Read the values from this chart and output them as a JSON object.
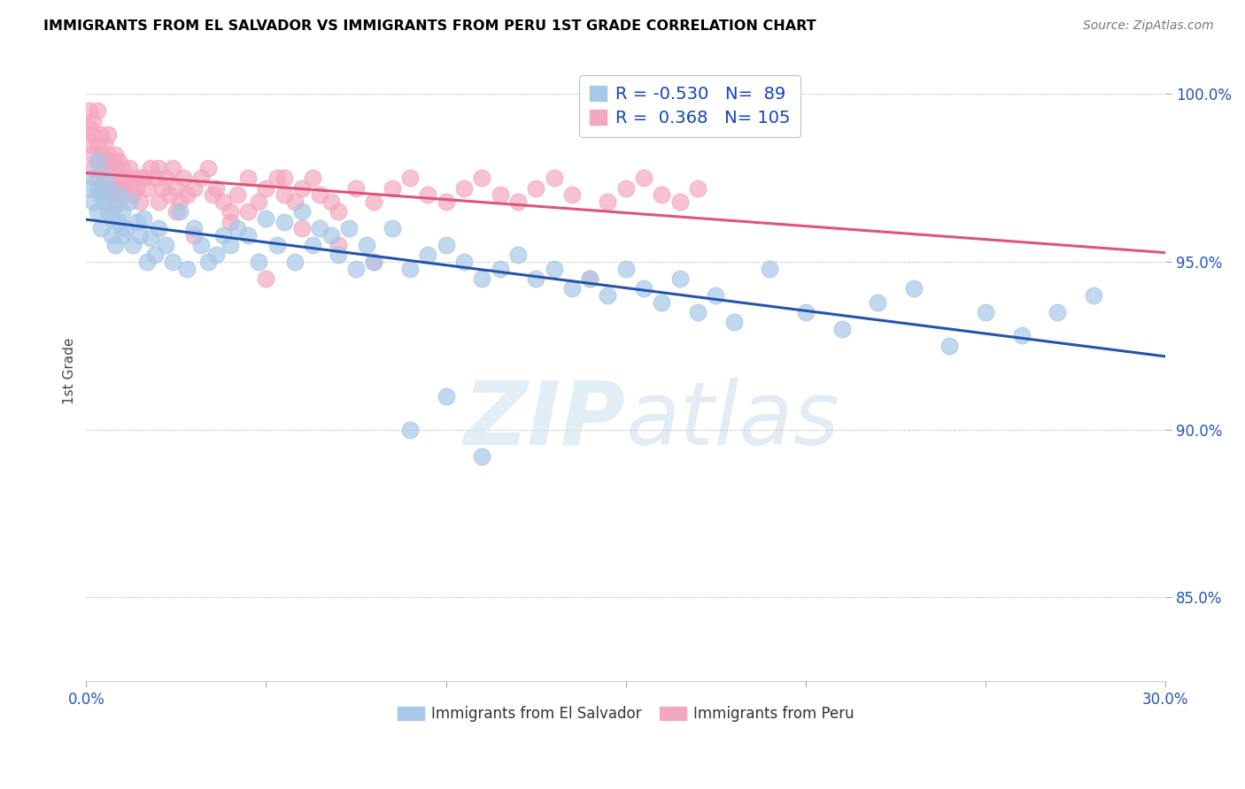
{
  "title": "IMMIGRANTS FROM EL SALVADOR VS IMMIGRANTS FROM PERU 1ST GRADE CORRELATION CHART",
  "source": "Source: ZipAtlas.com",
  "ylabel": "1st Grade",
  "ytick_labels": [
    "85.0%",
    "90.0%",
    "95.0%",
    "100.0%"
  ],
  "ytick_values": [
    0.85,
    0.9,
    0.95,
    1.0
  ],
  "xlim": [
    0.0,
    0.3
  ],
  "ylim": [
    0.825,
    1.01
  ],
  "legend_blue_R": "-0.530",
  "legend_blue_N": "89",
  "legend_pink_R": "0.368",
  "legend_pink_N": "105",
  "legend_blue_label": "Immigrants from El Salvador",
  "legend_pink_label": "Immigrants from Peru",
  "blue_color": "#a8c8e8",
  "pink_color": "#f4a8c0",
  "blue_line_color": "#2255aa",
  "pink_line_color": "#dd5577",
  "watermark_zip": "ZIP",
  "watermark_atlas": "atlas",
  "blue_scatter_x": [
    0.001,
    0.002,
    0.002,
    0.003,
    0.003,
    0.003,
    0.004,
    0.004,
    0.005,
    0.005,
    0.006,
    0.006,
    0.007,
    0.007,
    0.008,
    0.008,
    0.009,
    0.009,
    0.01,
    0.01,
    0.011,
    0.012,
    0.013,
    0.014,
    0.015,
    0.016,
    0.017,
    0.018,
    0.019,
    0.02,
    0.022,
    0.024,
    0.026,
    0.028,
    0.03,
    0.032,
    0.034,
    0.036,
    0.038,
    0.04,
    0.042,
    0.045,
    0.048,
    0.05,
    0.053,
    0.055,
    0.058,
    0.06,
    0.063,
    0.065,
    0.068,
    0.07,
    0.073,
    0.075,
    0.078,
    0.08,
    0.085,
    0.09,
    0.095,
    0.1,
    0.105,
    0.11,
    0.115,
    0.12,
    0.125,
    0.13,
    0.135,
    0.14,
    0.145,
    0.15,
    0.155,
    0.16,
    0.165,
    0.17,
    0.175,
    0.18,
    0.19,
    0.2,
    0.21,
    0.22,
    0.23,
    0.24,
    0.25,
    0.26,
    0.27,
    0.28,
    0.09,
    0.1,
    0.11
  ],
  "blue_scatter_y": [
    0.972,
    0.975,
    0.968,
    0.971,
    0.965,
    0.98,
    0.97,
    0.96,
    0.968,
    0.975,
    0.965,
    0.972,
    0.963,
    0.958,
    0.967,
    0.955,
    0.962,
    0.97,
    0.958,
    0.965,
    0.96,
    0.968,
    0.955,
    0.962,
    0.958,
    0.963,
    0.95,
    0.957,
    0.952,
    0.96,
    0.955,
    0.95,
    0.965,
    0.948,
    0.96,
    0.955,
    0.95,
    0.952,
    0.958,
    0.955,
    0.96,
    0.958,
    0.95,
    0.963,
    0.955,
    0.962,
    0.95,
    0.965,
    0.955,
    0.96,
    0.958,
    0.952,
    0.96,
    0.948,
    0.955,
    0.95,
    0.96,
    0.948,
    0.952,
    0.955,
    0.95,
    0.945,
    0.948,
    0.952,
    0.945,
    0.948,
    0.942,
    0.945,
    0.94,
    0.948,
    0.942,
    0.938,
    0.945,
    0.935,
    0.94,
    0.932,
    0.948,
    0.935,
    0.93,
    0.938,
    0.942,
    0.925,
    0.935,
    0.928,
    0.935,
    0.94,
    0.9,
    0.91,
    0.892
  ],
  "pink_scatter_x": [
    0.001,
    0.001,
    0.001,
    0.002,
    0.002,
    0.002,
    0.002,
    0.003,
    0.003,
    0.003,
    0.003,
    0.004,
    0.004,
    0.004,
    0.004,
    0.005,
    0.005,
    0.005,
    0.005,
    0.006,
    0.006,
    0.006,
    0.006,
    0.007,
    0.007,
    0.007,
    0.008,
    0.008,
    0.008,
    0.008,
    0.009,
    0.009,
    0.01,
    0.01,
    0.011,
    0.011,
    0.012,
    0.012,
    0.013,
    0.013,
    0.014,
    0.015,
    0.016,
    0.017,
    0.018,
    0.019,
    0.02,
    0.021,
    0.022,
    0.023,
    0.024,
    0.025,
    0.026,
    0.027,
    0.028,
    0.03,
    0.032,
    0.034,
    0.036,
    0.038,
    0.04,
    0.042,
    0.045,
    0.048,
    0.05,
    0.053,
    0.055,
    0.058,
    0.06,
    0.063,
    0.065,
    0.068,
    0.07,
    0.075,
    0.08,
    0.085,
    0.09,
    0.095,
    0.1,
    0.105,
    0.11,
    0.115,
    0.12,
    0.125,
    0.13,
    0.135,
    0.14,
    0.145,
    0.15,
    0.155,
    0.16,
    0.165,
    0.17,
    0.03,
    0.04,
    0.05,
    0.06,
    0.07,
    0.08,
    0.015,
    0.02,
    0.025,
    0.035,
    0.045,
    0.055
  ],
  "pink_scatter_y": [
    0.99,
    0.985,
    0.995,
    0.988,
    0.982,
    0.978,
    0.992,
    0.985,
    0.98,
    0.995,
    0.975,
    0.982,
    0.988,
    0.978,
    0.972,
    0.985,
    0.98,
    0.975,
    0.968,
    0.982,
    0.978,
    0.972,
    0.988,
    0.98,
    0.975,
    0.97,
    0.982,
    0.978,
    0.972,
    0.967,
    0.98,
    0.975,
    0.978,
    0.972,
    0.975,
    0.97,
    0.978,
    0.972,
    0.975,
    0.97,
    0.972,
    0.968,
    0.975,
    0.972,
    0.978,
    0.975,
    0.968,
    0.972,
    0.975,
    0.97,
    0.978,
    0.972,
    0.968,
    0.975,
    0.97,
    0.972,
    0.975,
    0.978,
    0.972,
    0.968,
    0.965,
    0.97,
    0.975,
    0.968,
    0.972,
    0.975,
    0.97,
    0.968,
    0.972,
    0.975,
    0.97,
    0.968,
    0.965,
    0.972,
    0.968,
    0.972,
    0.975,
    0.97,
    0.968,
    0.972,
    0.975,
    0.97,
    0.968,
    0.972,
    0.975,
    0.97,
    0.945,
    0.968,
    0.972,
    0.975,
    0.97,
    0.968,
    0.972,
    0.958,
    0.962,
    0.945,
    0.96,
    0.955,
    0.95,
    0.975,
    0.978,
    0.965,
    0.97,
    0.965,
    0.975
  ]
}
